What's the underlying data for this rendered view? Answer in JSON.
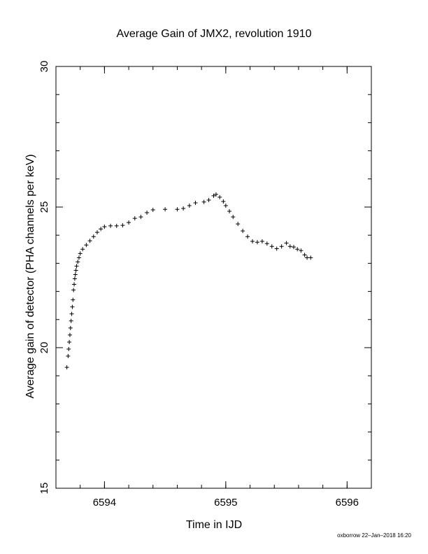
{
  "chart_data": {
    "type": "scatter",
    "title": "Average Gain of JMX2, revolution 1910",
    "xlabel": "Time in IJD",
    "ylabel": "Average gain of detector (PHA channels per keV)",
    "xlim": [
      6593.6,
      6596.2
    ],
    "ylim": [
      15,
      30
    ],
    "x_ticks": [
      6594,
      6595,
      6596
    ],
    "x_tick_labels": [
      "6594",
      "6595",
      "6596"
    ],
    "y_ticks": [
      15,
      20,
      25,
      30
    ],
    "y_tick_labels": [
      "15",
      "20",
      "25",
      "30"
    ],
    "x_minor_step": 0.2,
    "y_minor_step": 1,
    "marker": "plus",
    "grid": false,
    "series": [
      {
        "points": [
          [
            6593.69,
            19.3
          ],
          [
            6593.7,
            19.7
          ],
          [
            6593.705,
            19.95
          ],
          [
            6593.71,
            20.2
          ],
          [
            6593.715,
            20.45
          ],
          [
            6593.72,
            20.7
          ],
          [
            6593.725,
            20.95
          ],
          [
            6593.73,
            21.2
          ],
          [
            6593.735,
            21.45
          ],
          [
            6593.74,
            21.7
          ],
          [
            6593.745,
            22.05
          ],
          [
            6593.75,
            22.25
          ],
          [
            6593.755,
            22.45
          ],
          [
            6593.76,
            22.6
          ],
          [
            6593.765,
            22.75
          ],
          [
            6593.77,
            22.9
          ],
          [
            6593.78,
            23.05
          ],
          [
            6593.79,
            23.2
          ],
          [
            6593.8,
            23.35
          ],
          [
            6593.82,
            23.5
          ],
          [
            6593.85,
            23.65
          ],
          [
            6593.88,
            23.8
          ],
          [
            6593.91,
            23.95
          ],
          [
            6593.94,
            24.1
          ],
          [
            6593.97,
            24.22
          ],
          [
            6594.0,
            24.3
          ],
          [
            6594.05,
            24.33
          ],
          [
            6594.1,
            24.33
          ],
          [
            6594.15,
            24.35
          ],
          [
            6594.2,
            24.45
          ],
          [
            6594.25,
            24.6
          ],
          [
            6594.3,
            24.65
          ],
          [
            6594.35,
            24.8
          ],
          [
            6594.4,
            24.9
          ],
          [
            6594.5,
            24.92
          ],
          [
            6594.6,
            24.92
          ],
          [
            6594.65,
            24.95
          ],
          [
            6594.7,
            25.05
          ],
          [
            6594.75,
            25.15
          ],
          [
            6594.82,
            25.18
          ],
          [
            6594.86,
            25.25
          ],
          [
            6594.9,
            25.4
          ],
          [
            6594.92,
            25.45
          ],
          [
            6594.95,
            25.35
          ],
          [
            6594.98,
            25.2
          ],
          [
            6595.0,
            25.05
          ],
          [
            6595.03,
            24.85
          ],
          [
            6595.06,
            24.65
          ],
          [
            6595.1,
            24.4
          ],
          [
            6595.14,
            24.15
          ],
          [
            6595.18,
            23.95
          ],
          [
            6595.22,
            23.78
          ],
          [
            6595.26,
            23.75
          ],
          [
            6595.3,
            23.78
          ],
          [
            6595.34,
            23.7
          ],
          [
            6595.38,
            23.6
          ],
          [
            6595.42,
            23.52
          ],
          [
            6595.46,
            23.6
          ],
          [
            6595.5,
            23.72
          ],
          [
            6595.53,
            23.6
          ],
          [
            6595.56,
            23.58
          ],
          [
            6595.59,
            23.5
          ],
          [
            6595.62,
            23.45
          ],
          [
            6595.65,
            23.3
          ],
          [
            6595.67,
            23.2
          ],
          [
            6595.7,
            23.2
          ]
        ]
      }
    ]
  },
  "footer": {
    "stamp": "oxborrow 22–Jan–2018 16:20"
  }
}
